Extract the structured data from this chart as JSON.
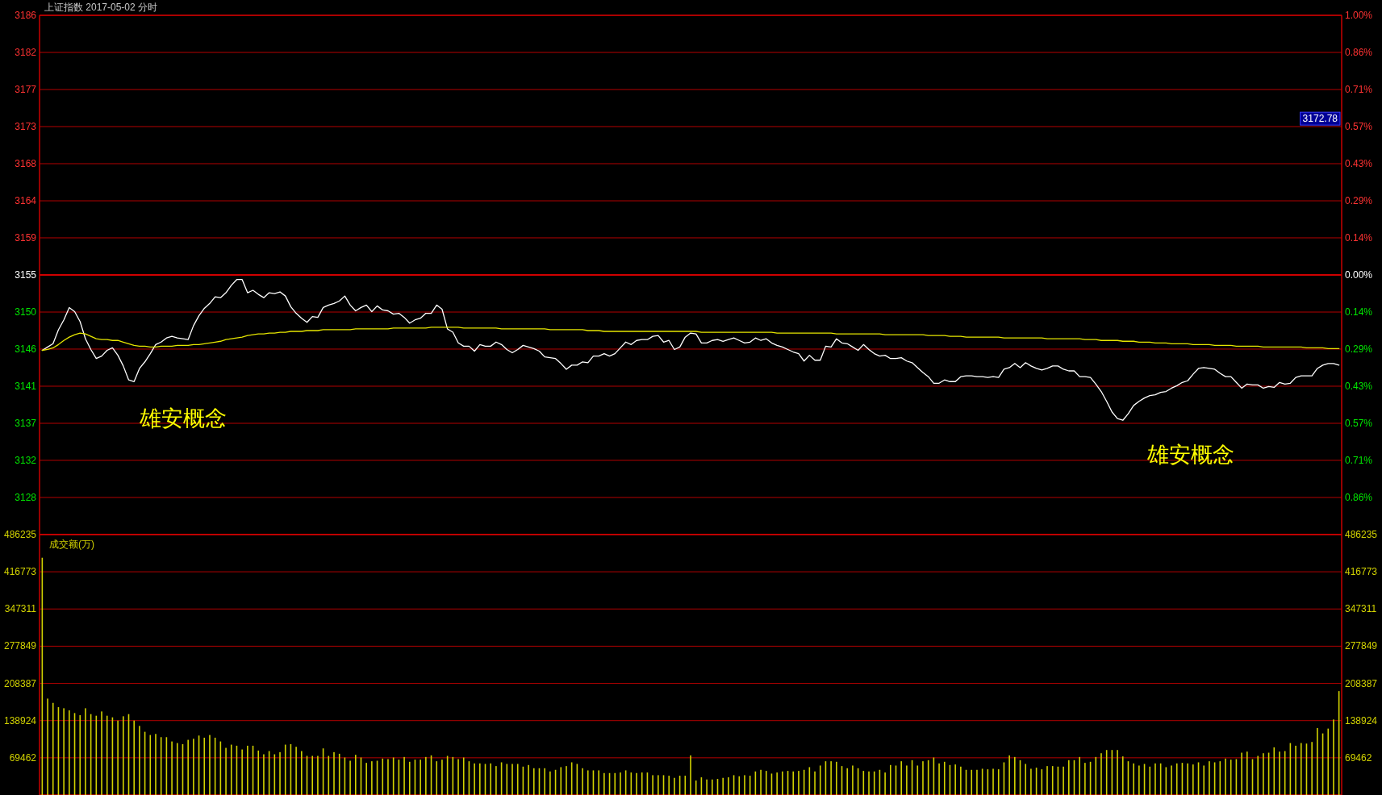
{
  "chart_data": [
    {
      "type": "line",
      "title": "上证指数 2017-05-02 分时",
      "categories": [
        null,
        null,
        null,
        null,
        null,
        null,
        null,
        null,
        null,
        null,
        null,
        null,
        null,
        null,
        null,
        null,
        null,
        null,
        null,
        null,
        null,
        null,
        null,
        null,
        null,
        null,
        null,
        null,
        null,
        null,
        null,
        null,
        null,
        null,
        null,
        null,
        null,
        null,
        null,
        null,
        null,
        null,
        null,
        null,
        null,
        null,
        null,
        null,
        null,
        null,
        null,
        null,
        null,
        null,
        null,
        null,
        null,
        null,
        null,
        null,
        null,
        null,
        null,
        null,
        null,
        null,
        null,
        null,
        null,
        null,
        null,
        null,
        null,
        null,
        null,
        null,
        null,
        null,
        null,
        null,
        null,
        null,
        null,
        null,
        null,
        null,
        null,
        null,
        null,
        null,
        null,
        null,
        null,
        null,
        null,
        null,
        null,
        null,
        null,
        null,
        null,
        null,
        null,
        null,
        null,
        null,
        null,
        null,
        null,
        null,
        null,
        null,
        null,
        null,
        null,
        null,
        null,
        null,
        null,
        null,
        null,
        null,
        null,
        null,
        null,
        null,
        null,
        null,
        null,
        null,
        null,
        null,
        null,
        null,
        null,
        null,
        null,
        null,
        null,
        null,
        null,
        null,
        null,
        null,
        null,
        null,
        null,
        null,
        null,
        null,
        null,
        null,
        null,
        null,
        null,
        null,
        null,
        null,
        null,
        null,
        null,
        null,
        null,
        null,
        null,
        null,
        null,
        null,
        null,
        null,
        null,
        null,
        null,
        null,
        null,
        null,
        null,
        null,
        null,
        null,
        null,
        null,
        null,
        null,
        null,
        null,
        null,
        null,
        null,
        null,
        null,
        null,
        null,
        null,
        null,
        null,
        null,
        null,
        null,
        null,
        null,
        null,
        null,
        null,
        null,
        null,
        null,
        null,
        null,
        null,
        null,
        null,
        null,
        null,
        null,
        null,
        null,
        null,
        null,
        null,
        null,
        null,
        null,
        null,
        null,
        null,
        null,
        null,
        null,
        null,
        null,
        null,
        null,
        null,
        null,
        null,
        null,
        null,
        null,
        null,
        null
      ],
      "series": [
        {
          "color": "#ffffff",
          "values": [
            3145.5,
            3145.9,
            3146.3,
            3148.0,
            3149.2,
            3150.7,
            3150.2,
            3149.0,
            3146.9,
            3145.6,
            3144.5,
            3144.8,
            3145.5,
            3145.8,
            3144.9,
            3143.6,
            3141.9,
            3141.7,
            3143.3,
            3144.1,
            3145.1,
            3146.2,
            3146.5,
            3147.0,
            3147.2,
            3147.0,
            3146.9,
            3146.8,
            3148.5,
            3149.7,
            3150.6,
            3151.2,
            3152.0,
            3151.9,
            3152.5,
            3153.4,
            3154.1,
            3154.1,
            3152.5,
            3152.8,
            3152.3,
            3151.9,
            3152.5,
            3152.4,
            3152.6,
            3152.1,
            3150.8,
            3150.0,
            3149.4,
            3148.9,
            3149.6,
            3149.5,
            3150.7,
            3151.0,
            3151.2,
            3151.5,
            3152.1,
            3151.0,
            3150.3,
            3150.7,
            3151.0,
            3150.2,
            3150.9,
            3150.4,
            3150.3,
            3149.9,
            3150.0,
            3149.5,
            3148.8,
            3149.2,
            3149.4,
            3150.0,
            3150.0,
            3151.0,
            3150.5,
            3148.1,
            3147.7,
            3146.4,
            3146.0,
            3146.0,
            3145.4,
            3146.2,
            3146.0,
            3146.0,
            3146.5,
            3146.2,
            3145.6,
            3145.2,
            3145.6,
            3146.1,
            3145.9,
            3145.7,
            3145.4,
            3144.7,
            3144.6,
            3144.5,
            3143.9,
            3143.2,
            3143.7,
            3143.7,
            3144.1,
            3144.0,
            3144.8,
            3144.8,
            3145.1,
            3144.8,
            3145.1,
            3145.8,
            3146.5,
            3146.2,
            3146.7,
            3146.8,
            3146.8,
            3147.2,
            3147.3,
            3146.5,
            3146.7,
            3145.6,
            3145.9,
            3147.1,
            3147.6,
            3147.5,
            3146.4,
            3146.4,
            3146.7,
            3146.8,
            3146.6,
            3146.8,
            3147.0,
            3146.7,
            3146.4,
            3146.5,
            3147.0,
            3146.7,
            3146.9,
            3146.4,
            3146.1,
            3145.9,
            3145.6,
            3145.3,
            3145.1,
            3144.2,
            3144.9,
            3144.3,
            3144.3,
            3146.0,
            3145.9,
            3146.9,
            3146.4,
            3146.3,
            3145.9,
            3145.5,
            3146.2,
            3145.6,
            3145.1,
            3144.8,
            3144.9,
            3144.5,
            3144.5,
            3144.6,
            3144.2,
            3144.0,
            3143.4,
            3142.8,
            3142.3,
            3141.5,
            3141.5,
            3141.9,
            3141.7,
            3141.7,
            3142.3,
            3142.4,
            3142.4,
            3142.3,
            3142.3,
            3142.2,
            3142.3,
            3142.2,
            3143.2,
            3143.4,
            3143.9,
            3143.4,
            3144.0,
            3143.6,
            3143.3,
            3143.1,
            3143.3,
            3143.6,
            3143.6,
            3143.2,
            3143.0,
            3143.0,
            3142.3,
            3142.3,
            3142.2,
            3141.4,
            3140.5,
            3139.3,
            3138.0,
            3137.2,
            3137.0,
            3137.8,
            3138.8,
            3139.3,
            3139.7,
            3140.0,
            3140.1,
            3140.4,
            3140.5,
            3140.9,
            3141.2,
            3141.6,
            3141.8,
            3142.6,
            3143.3,
            3143.4,
            3143.3,
            3143.2,
            3142.7,
            3142.3,
            3142.3,
            3141.6,
            3140.9,
            3141.4,
            3141.3,
            3141.3,
            3140.9,
            3141.1,
            3141.0,
            3141.6,
            3141.4,
            3141.5,
            3142.2,
            3142.4,
            3142.4,
            3142.4,
            3143.3,
            3143.7,
            3143.9,
            3143.9,
            3143.7
          ]
        },
        {
          "color": "#e6e600",
          "values": [
            3145.5,
            3145.6,
            3145.8,
            3146.2,
            3146.7,
            3147.1,
            3147.4,
            3147.6,
            3147.5,
            3147.2,
            3146.9,
            3146.8,
            3146.8,
            3146.7,
            3146.7,
            3146.5,
            3146.3,
            3146.1,
            3146.0,
            3146.0,
            3145.9,
            3145.9,
            3146.0,
            3146.0,
            3146.0,
            3146.1,
            3146.1,
            3146.1,
            3146.2,
            3146.2,
            3146.3,
            3146.4,
            3146.5,
            3146.6,
            3146.8,
            3146.9,
            3147.0,
            3147.1,
            3147.3,
            3147.4,
            3147.5,
            3147.5,
            3147.6,
            3147.6,
            3147.7,
            3147.7,
            3147.8,
            3147.8,
            3147.8,
            3147.9,
            3147.9,
            3147.9,
            3148.0,
            3148.0,
            3148.0,
            3148.0,
            3148.0,
            3148.0,
            3148.1,
            3148.1,
            3148.1,
            3148.1,
            3148.1,
            3148.1,
            3148.1,
            3148.2,
            3148.2,
            3148.2,
            3148.2,
            3148.2,
            3148.2,
            3148.2,
            3148.3,
            3148.3,
            3148.3,
            3148.3,
            3148.3,
            3148.3,
            3148.2,
            3148.2,
            3148.2,
            3148.2,
            3148.2,
            3148.2,
            3148.2,
            3148.1,
            3148.1,
            3148.1,
            3148.1,
            3148.1,
            3148.1,
            3148.1,
            3148.1,
            3148.1,
            3148.0,
            3148.0,
            3148.0,
            3148.0,
            3148.0,
            3148.0,
            3148.0,
            3147.9,
            3147.9,
            3147.9,
            3147.8,
            3147.8,
            3147.8,
            3147.8,
            3147.8,
            3147.8,
            3147.8,
            3147.8,
            3147.8,
            3147.8,
            3147.8,
            3147.8,
            3147.8,
            3147.8,
            3147.8,
            3147.8,
            3147.8,
            3147.8,
            3147.7,
            3147.7,
            3147.7,
            3147.7,
            3147.7,
            3147.7,
            3147.7,
            3147.7,
            3147.7,
            3147.7,
            3147.7,
            3147.7,
            3147.7,
            3147.7,
            3147.6,
            3147.6,
            3147.6,
            3147.6,
            3147.6,
            3147.6,
            3147.6,
            3147.6,
            3147.6,
            3147.6,
            3147.6,
            3147.5,
            3147.5,
            3147.5,
            3147.5,
            3147.5,
            3147.5,
            3147.5,
            3147.5,
            3147.5,
            3147.4,
            3147.4,
            3147.4,
            3147.4,
            3147.4,
            3147.4,
            3147.4,
            3147.4,
            3147.3,
            3147.3,
            3147.3,
            3147.3,
            3147.2,
            3147.2,
            3147.2,
            3147.1,
            3147.1,
            3147.1,
            3147.1,
            3147.1,
            3147.1,
            3147.1,
            3147.0,
            3147.0,
            3147.0,
            3147.0,
            3147.0,
            3147.0,
            3147.0,
            3147.0,
            3146.9,
            3146.9,
            3146.9,
            3146.9,
            3146.9,
            3146.9,
            3146.9,
            3146.8,
            3146.8,
            3146.8,
            3146.7,
            3146.7,
            3146.7,
            3146.7,
            3146.6,
            3146.6,
            3146.6,
            3146.5,
            3146.5,
            3146.5,
            3146.4,
            3146.4,
            3146.4,
            3146.3,
            3146.3,
            3146.3,
            3146.3,
            3146.2,
            3146.2,
            3146.2,
            3146.2,
            3146.1,
            3146.1,
            3146.1,
            3146.1,
            3146.0,
            3146.0,
            3146.0,
            3146.0,
            3146.0,
            3145.9,
            3145.9,
            3145.9,
            3145.9,
            3145.9,
            3145.9,
            3145.9,
            3145.9,
            3145.8,
            3145.8,
            3145.8,
            3145.8,
            3145.7,
            3145.7,
            3145.7
          ]
        }
      ],
      "ylim": [
        3123.11,
        3186.21
      ],
      "yticks": [
        {
          "value": 3186.21,
          "label": "3186"
        },
        {
          "value": 3181.7,
          "label": "3182"
        },
        {
          "value": 3177.19,
          "label": "3177"
        },
        {
          "value": 3172.69,
          "label": "3173"
        },
        {
          "value": 3168.18,
          "label": "3168"
        },
        {
          "value": 3163.67,
          "label": "3164"
        },
        {
          "value": 3159.17,
          "label": "3159"
        },
        {
          "value": 3154.66,
          "label": "3155"
        },
        {
          "value": 3150.15,
          "label": "3150"
        },
        {
          "value": 3145.65,
          "label": "3146"
        },
        {
          "value": 3141.14,
          "label": "3141"
        },
        {
          "value": 3136.63,
          "label": "3137"
        },
        {
          "value": 3132.13,
          "label": "3132"
        },
        {
          "value": 3127.62,
          "label": "3128"
        }
      ],
      "y2lim": [
        -1.0,
        1.0
      ],
      "y2ticks": [
        {
          "value": 1.0,
          "label": "1.00%"
        },
        {
          "value": 0.857,
          "label": "0.86%"
        },
        {
          "value": 0.714,
          "label": "0.71%"
        },
        {
          "value": 0.571,
          "label": "0.57%"
        },
        {
          "value": 0.429,
          "label": "0.43%"
        },
        {
          "value": 0.286,
          "label": "0.29%"
        },
        {
          "value": 0.143,
          "label": "0.14%"
        },
        {
          "value": 0,
          "label": "0.00%"
        },
        {
          "value": -0.143,
          "label": "0.14%"
        },
        {
          "value": -0.286,
          "label": "0.29%"
        },
        {
          "value": -0.429,
          "label": "0.43%"
        },
        {
          "value": -0.571,
          "label": "0.57%"
        },
        {
          "value": -0.714,
          "label": "0.71%"
        },
        {
          "value": -0.857,
          "label": "0.86%"
        }
      ],
      "ref_lines": [
        {
          "axis": "y",
          "value": 3154.66,
          "color": "#d00000"
        }
      ],
      "annotations": [
        "雄安概念",
        "雄安概念",
        "3172.78"
      ],
      "grid": "y",
      "marker": "none",
      "line_style": "solid"
    },
    {
      "type": "bar",
      "title": "成交额(万)",
      "color": "#d2d200",
      "categories": [
        null,
        null,
        null,
        null,
        null,
        null,
        null,
        null,
        null,
        null,
        null,
        null,
        null,
        null,
        null,
        null,
        null,
        null,
        null,
        null,
        null,
        null,
        null,
        null,
        null,
        null,
        null,
        null,
        null,
        null,
        null,
        null,
        null,
        null,
        null,
        null,
        null,
        null,
        null,
        null,
        null,
        null,
        null,
        null,
        null,
        null,
        null,
        null,
        null,
        null,
        null,
        null,
        null,
        null,
        null,
        null,
        null,
        null,
        null,
        null,
        null,
        null,
        null,
        null,
        null,
        null,
        null,
        null,
        null,
        null,
        null,
        null,
        null,
        null,
        null,
        null,
        null,
        null,
        null,
        null,
        null,
        null,
        null,
        null,
        null,
        null,
        null,
        null,
        null,
        null,
        null,
        null,
        null,
        null,
        null,
        null,
        null,
        null,
        null,
        null,
        null,
        null,
        null,
        null,
        null,
        null,
        null,
        null,
        null,
        null,
        null,
        null,
        null,
        null,
        null,
        null,
        null,
        null,
        null,
        null,
        null,
        null,
        null,
        null,
        null,
        null,
        null,
        null,
        null,
        null,
        null,
        null,
        null,
        null,
        null,
        null,
        null,
        null,
        null,
        null,
        null,
        null,
        null,
        null,
        null,
        null,
        null,
        null,
        null,
        null,
        null,
        null,
        null,
        null,
        null,
        null,
        null,
        null,
        null,
        null,
        null,
        null,
        null,
        null,
        null,
        null,
        null,
        null,
        null,
        null,
        null,
        null,
        null,
        null,
        null,
        null,
        null,
        null,
        null,
        null,
        null,
        null,
        null,
        null,
        null,
        null,
        null,
        null,
        null,
        null,
        null,
        null,
        null,
        null,
        null,
        null,
        null,
        null,
        null,
        null,
        null,
        null,
        null,
        null,
        null,
        null,
        null,
        null,
        null,
        null,
        null,
        null,
        null,
        null,
        null,
        null,
        null,
        null,
        null,
        null,
        null,
        null,
        null,
        null,
        null,
        null,
        null,
        null,
        null,
        null,
        null,
        null,
        null,
        null,
        null,
        null,
        null,
        null,
        null,
        null,
        null
      ],
      "values": [
        443000,
        180000,
        172000,
        164000,
        162000,
        158000,
        153000,
        149000,
        162000,
        151000,
        148000,
        156000,
        148000,
        145000,
        139000,
        147000,
        151000,
        139000,
        129000,
        118000,
        112000,
        114000,
        108000,
        108000,
        100000,
        97000,
        95000,
        103000,
        105000,
        111000,
        107000,
        112000,
        107000,
        100000,
        88000,
        94000,
        92000,
        85000,
        92000,
        92000,
        83000,
        76000,
        82000,
        76000,
        80000,
        94000,
        95000,
        90000,
        82000,
        73000,
        73000,
        73000,
        87000,
        73000,
        80000,
        77000,
        70000,
        64000,
        75000,
        70000,
        60000,
        63000,
        64000,
        68000,
        67000,
        70000,
        66000,
        71000,
        62000,
        66000,
        66000,
        71000,
        74000,
        63000,
        66000,
        73000,
        71000,
        67000,
        70000,
        63000,
        59000,
        59000,
        58000,
        59000,
        54000,
        61000,
        58000,
        58000,
        58000,
        53000,
        56000,
        50000,
        50000,
        50000,
        44000,
        47000,
        52000,
        54000,
        61000,
        58000,
        50000,
        46000,
        46000,
        46000,
        41000,
        41000,
        41000,
        42000,
        46000,
        42000,
        41000,
        42000,
        42000,
        37000,
        37000,
        37000,
        36000,
        32000,
        36000,
        36000,
        74000,
        27000,
        33000,
        29000,
        29000,
        30000,
        32000,
        33000,
        37000,
        35000,
        37000,
        36000,
        44000,
        47000,
        45000,
        40000,
        42000,
        44000,
        45000,
        44000,
        45000,
        47000,
        52000,
        44000,
        55000,
        63000,
        63000,
        62000,
        54000,
        50000,
        55000,
        50000,
        45000,
        44000,
        44000,
        47000,
        42000,
        56000,
        55000,
        63000,
        55000,
        65000,
        55000,
        63000,
        65000,
        70000,
        59000,
        62000,
        56000,
        57000,
        53000,
        47000,
        47000,
        47000,
        49000,
        48000,
        49000,
        48000,
        61000,
        74000,
        71000,
        65000,
        58000,
        49000,
        51000,
        48000,
        54000,
        54000,
        53000,
        53000,
        65000,
        65000,
        71000,
        60000,
        62000,
        71000,
        78000,
        84000,
        84000,
        84000,
        72000,
        63000,
        59000,
        55000,
        58000,
        53000,
        59000,
        59000,
        52000,
        55000,
        59000,
        60000,
        59000,
        57000,
        61000,
        55000,
        63000,
        61000,
        63000,
        68000,
        66000,
        67000,
        79000,
        81000,
        67000,
        73000,
        78000,
        79000,
        89000,
        81000,
        82000,
        97000,
        92000,
        97000,
        96000,
        99000,
        125000,
        115000,
        124000,
        141000,
        194000
      ],
      "ylim": [
        0,
        486235
      ],
      "yticks": [
        69462,
        138924,
        208387,
        277849,
        347311,
        416773,
        486235
      ],
      "y2lim": [
        0,
        486235
      ],
      "y2ticks": [
        69462,
        138924,
        208387,
        277849,
        347311,
        416773,
        486235
      ],
      "grid": "y"
    }
  ]
}
